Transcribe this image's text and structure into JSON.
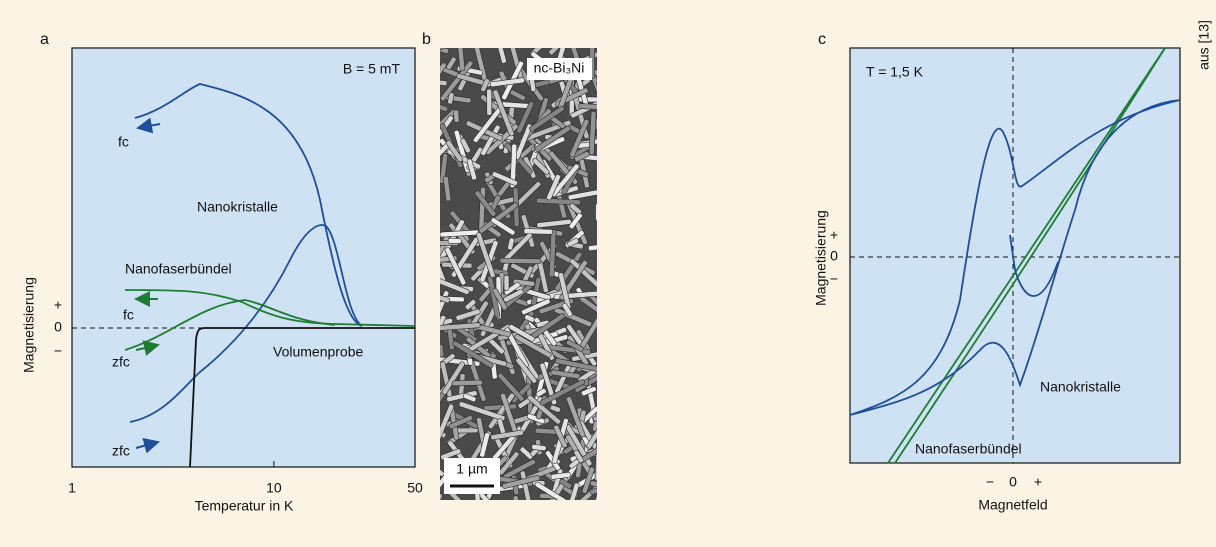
{
  "panel_labels": [
    "a",
    "b",
    "c"
  ],
  "credit": "aus [13]",
  "panel_a": {
    "annotation": "B = 5 mT",
    "curve_labels": [
      "fc",
      "Nanokristalle",
      "Nanofaserbündel",
      "fc",
      "zfc",
      "Volumenprobe",
      "zfc"
    ],
    "y_label": "Magnetisierung",
    "y_signs": [
      "+",
      "0",
      "−"
    ],
    "x_label": "Temperatur in K",
    "xlim": [
      1,
      50
    ],
    "xticks": [
      1,
      10,
      50
    ],
    "log_x": true
  },
  "panel_b": {
    "label": "nc-Bi₃Ni",
    "scale_bar": "1 µm"
  },
  "panel_c": {
    "annotation": "T = 1,5 K",
    "curve_labels": [
      "Nanokristalle",
      "Nanofaserbündel"
    ],
    "y_label": "Magnetisierung",
    "y_signs": [
      "+",
      "0",
      "−"
    ],
    "x_signs": [
      "−",
      "0",
      "+"
    ],
    "x_label": "Magnetfeld"
  }
}
